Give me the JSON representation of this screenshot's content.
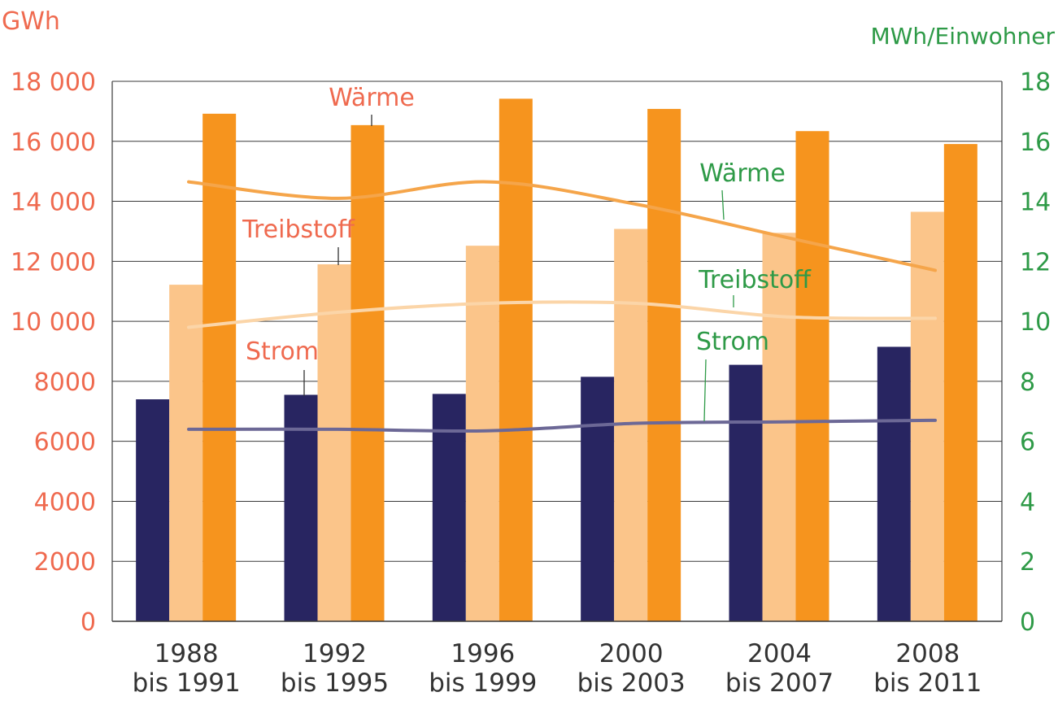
{
  "chart_data": {
    "type": "bar",
    "categories": [
      [
        "1988",
        "bis 1991"
      ],
      [
        "1992",
        "bis 1995"
      ],
      [
        "1996",
        "bis 1999"
      ],
      [
        "2000",
        "bis 2003"
      ],
      [
        "2004",
        "bis 2007"
      ],
      [
        "2008",
        "bis 2011"
      ]
    ],
    "left_axis": {
      "unit": "GWh",
      "ylim": [
        0,
        18000
      ],
      "ticks": [
        0,
        2000,
        4000,
        6000,
        8000,
        10000,
        12000,
        14000,
        16000,
        18000
      ],
      "tick_labels": [
        "0",
        "2000",
        "4000",
        "6000",
        "8000",
        "10 000",
        "12 000",
        "14 000",
        "16 000",
        "18 000"
      ],
      "color": "#ef6a4f"
    },
    "right_axis": {
      "unit": "MWh/Einwohner",
      "ylim": [
        0,
        18
      ],
      "ticks": [
        0,
        2,
        4,
        6,
        8,
        10,
        12,
        14,
        16,
        18
      ],
      "tick_labels": [
        "0",
        "2",
        "4",
        "6",
        "8",
        "10",
        "12",
        "14",
        "16",
        "18"
      ],
      "color": "#2e9a47"
    },
    "bar_series": [
      {
        "name": "Strom",
        "color": "#282561",
        "values": [
          7400,
          7550,
          7580,
          8150,
          8550,
          9150
        ]
      },
      {
        "name": "Treibstoff",
        "color": "#fbc58a",
        "values": [
          11220,
          11900,
          12520,
          13080,
          12950,
          13650
        ]
      },
      {
        "name": "Wärme",
        "color": "#f6941e",
        "values": [
          16920,
          16540,
          17420,
          17080,
          16340,
          15910
        ]
      }
    ],
    "line_series": [
      {
        "name": "Wärme",
        "color": "#f5a54a",
        "values": [
          14.65,
          14.1,
          14.65,
          13.9,
          12.8,
          11.7
        ]
      },
      {
        "name": "Treibstoff",
        "color": "#fbd5a8",
        "values": [
          9.8,
          10.3,
          10.6,
          10.6,
          10.15,
          10.1
        ]
      },
      {
        "name": "Strom",
        "color": "#6c6896",
        "values": [
          6.4,
          6.4,
          6.35,
          6.6,
          6.65,
          6.7
        ]
      }
    ],
    "grid": true
  }
}
